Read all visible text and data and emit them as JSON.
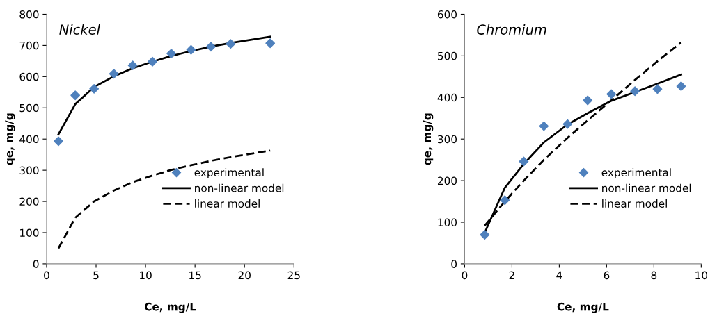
{
  "chart_data": [
    {
      "type": "line",
      "title": "Nickel",
      "xlabel": "Ce, mg/L",
      "ylabel": "qe, mg/g",
      "xlim": [
        0,
        25
      ],
      "xticks": [
        0,
        5,
        10,
        15,
        20,
        25
      ],
      "ylim": [
        0,
        800
      ],
      "yticks": [
        0,
        100,
        200,
        300,
        400,
        500,
        600,
        700,
        800
      ],
      "grid": false,
      "legend": "right",
      "x": [
        1.2,
        2.9,
        4.8,
        6.8,
        8.7,
        10.7,
        12.6,
        14.6,
        16.6,
        18.6,
        22.6
      ],
      "series": [
        {
          "name": "experimental",
          "type": "scatter",
          "marker": "diamond",
          "color": "#4f81bd",
          "values": [
            393,
            540,
            561,
            609,
            636,
            648,
            674,
            686,
            696,
            705,
            707
          ]
        },
        {
          "name": "non-linear model",
          "line_style": "solid",
          "color": "#000000",
          "values": [
            415,
            512,
            567,
            601,
            627,
            648,
            666,
            682,
            696,
            708,
            728
          ]
        },
        {
          "name": "linear model",
          "line_style": "dashed",
          "color": "#000000",
          "values": [
            50,
            148,
            200,
            235,
            262,
            283,
            301,
            316,
            330,
            342,
            363
          ]
        }
      ]
    },
    {
      "type": "line",
      "title": "Chromium",
      "xlabel": "Ce, mg/L",
      "ylabel": "qe, mg/g",
      "xlim": [
        0,
        10
      ],
      "xticks": [
        0,
        2,
        4,
        6,
        8,
        10
      ],
      "ylim": [
        0,
        600
      ],
      "yticks": [
        0,
        100,
        200,
        300,
        400,
        500,
        600
      ],
      "grid": false,
      "legend": "right",
      "x": [
        0.85,
        1.7,
        2.5,
        3.35,
        4.35,
        5.2,
        6.2,
        7.2,
        8.15,
        9.15
      ],
      "series": [
        {
          "name": "experimental",
          "type": "scatter",
          "marker": "diamond",
          "color": "#4f81bd",
          "values": [
            70,
            153,
            246,
            331,
            336,
            393,
            408,
            415,
            420,
            427
          ]
        },
        {
          "name": "non-linear model",
          "line_style": "solid",
          "color": "#000000",
          "values": [
            75,
            183,
            240,
            292,
            335,
            362,
            392,
            413,
            433,
            455
          ]
        },
        {
          "name": "linear model",
          "line_style": "dashed",
          "color": "#000000",
          "values": [
            92,
            150,
            200,
            250,
            303,
            345,
            393,
            442,
            487,
            532
          ]
        }
      ]
    }
  ]
}
